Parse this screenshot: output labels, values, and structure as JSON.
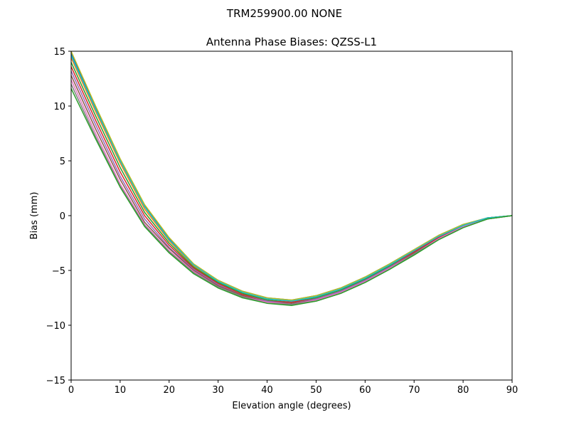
{
  "figure": {
    "suptitle": "TRM259900.00    NONE"
  },
  "chart_data": {
    "type": "line",
    "title": "Antenna Phase Biases: QZSS-L1",
    "xlabel": "Elevation angle (degrees)",
    "ylabel": "Bias (mm)",
    "xlim": [
      0,
      90
    ],
    "ylim": [
      -15,
      15
    ],
    "xticks": [
      0,
      10,
      20,
      30,
      40,
      50,
      60,
      70,
      80,
      90
    ],
    "yticks": [
      -15,
      -10,
      -5,
      0,
      5,
      10,
      15
    ],
    "xtick_labels": [
      "0",
      "10",
      "20",
      "30",
      "40",
      "50",
      "60",
      "70",
      "80",
      "90"
    ],
    "ytick_labels": [
      "−15",
      "−10",
      "−5",
      "0",
      "5",
      "10",
      "15"
    ],
    "grid": false,
    "legend": "none",
    "x": [
      0,
      5,
      10,
      15,
      20,
      25,
      30,
      35,
      40,
      45,
      50,
      55,
      60,
      65,
      70,
      75,
      80,
      85,
      90
    ],
    "series": [
      {
        "color": "#1f77b4",
        "values": [
          14.8,
          9.9,
          5.1,
          0.9,
          -2.1,
          -4.5,
          -5.9,
          -6.9,
          -7.5,
          -7.7,
          -7.3,
          -6.6,
          -5.6,
          -4.4,
          -3.1,
          -1.8,
          -0.8,
          -0.2,
          0.0
        ]
      },
      {
        "color": "#ff7f0e",
        "values": [
          14.4,
          9.5,
          4.8,
          0.6,
          -2.3,
          -4.6,
          -6.0,
          -7.0,
          -7.6,
          -7.8,
          -7.4,
          -6.7,
          -5.7,
          -4.5,
          -3.2,
          -1.9,
          -0.9,
          -0.2,
          0.0
        ]
      },
      {
        "color": "#2ca02c",
        "values": [
          14.0,
          9.1,
          4.4,
          0.3,
          -2.5,
          -4.7,
          -6.1,
          -7.1,
          -7.7,
          -7.9,
          -7.5,
          -6.8,
          -5.8,
          -4.6,
          -3.3,
          -2.0,
          -0.9,
          -0.2,
          0.0
        ]
      },
      {
        "color": "#d62728",
        "values": [
          13.6,
          8.7,
          4.0,
          0.0,
          -2.7,
          -4.8,
          -6.2,
          -7.2,
          -7.8,
          -7.9,
          -7.6,
          -6.9,
          -5.9,
          -4.7,
          -3.3,
          -2.0,
          -1.0,
          -0.2,
          0.0
        ]
      },
      {
        "color": "#9467bd",
        "values": [
          13.2,
          8.3,
          3.6,
          -0.3,
          -2.9,
          -4.9,
          -6.3,
          -7.3,
          -7.8,
          -8.0,
          -7.6,
          -6.9,
          -5.9,
          -4.7,
          -3.4,
          -2.1,
          -1.0,
          -0.3,
          0.0
        ]
      },
      {
        "color": "#8c564b",
        "values": [
          12.8,
          7.9,
          3.3,
          -0.6,
          -3.0,
          -5.0,
          -6.4,
          -7.3,
          -7.9,
          -8.0,
          -7.7,
          -7.0,
          -6.0,
          -4.8,
          -3.4,
          -2.1,
          -1.0,
          -0.3,
          0.0
        ]
      },
      {
        "color": "#e377c2",
        "values": [
          12.4,
          7.5,
          2.9,
          -0.8,
          -3.2,
          -5.1,
          -6.5,
          -7.4,
          -7.9,
          -8.1,
          -7.7,
          -7.0,
          -6.0,
          -4.8,
          -3.5,
          -2.1,
          -1.0,
          -0.3,
          0.0
        ]
      },
      {
        "color": "#7f7f7f",
        "values": [
          12.0,
          7.2,
          2.7,
          -0.9,
          -3.3,
          -5.2,
          -6.5,
          -7.4,
          -8.0,
          -8.1,
          -7.8,
          -7.1,
          -6.1,
          -4.9,
          -3.5,
          -2.2,
          -1.1,
          -0.3,
          0.0
        ]
      },
      {
        "color": "#bcbd22",
        "values": [
          15.0,
          10.0,
          5.2,
          1.0,
          -2.0,
          -4.4,
          -5.9,
          -6.9,
          -7.5,
          -7.7,
          -7.3,
          -6.6,
          -5.6,
          -4.4,
          -3.1,
          -1.8,
          -0.8,
          -0.2,
          0.0
        ]
      },
      {
        "color": "#17becf",
        "values": [
          14.6,
          9.7,
          5.0,
          0.8,
          -2.2,
          -4.5,
          -6.0,
          -7.0,
          -7.6,
          -7.8,
          -7.4,
          -6.7,
          -5.7,
          -4.5,
          -3.2,
          -1.9,
          -0.9,
          -0.2,
          0.0
        ]
      },
      {
        "color": "#2ca02c",
        "values": [
          11.6,
          7.0,
          2.6,
          -1.0,
          -3.4,
          -5.3,
          -6.6,
          -7.5,
          -8.0,
          -8.2,
          -7.8,
          -7.1,
          -6.1,
          -4.9,
          -3.6,
          -2.2,
          -1.1,
          -0.3,
          0.0
        ]
      }
    ]
  }
}
